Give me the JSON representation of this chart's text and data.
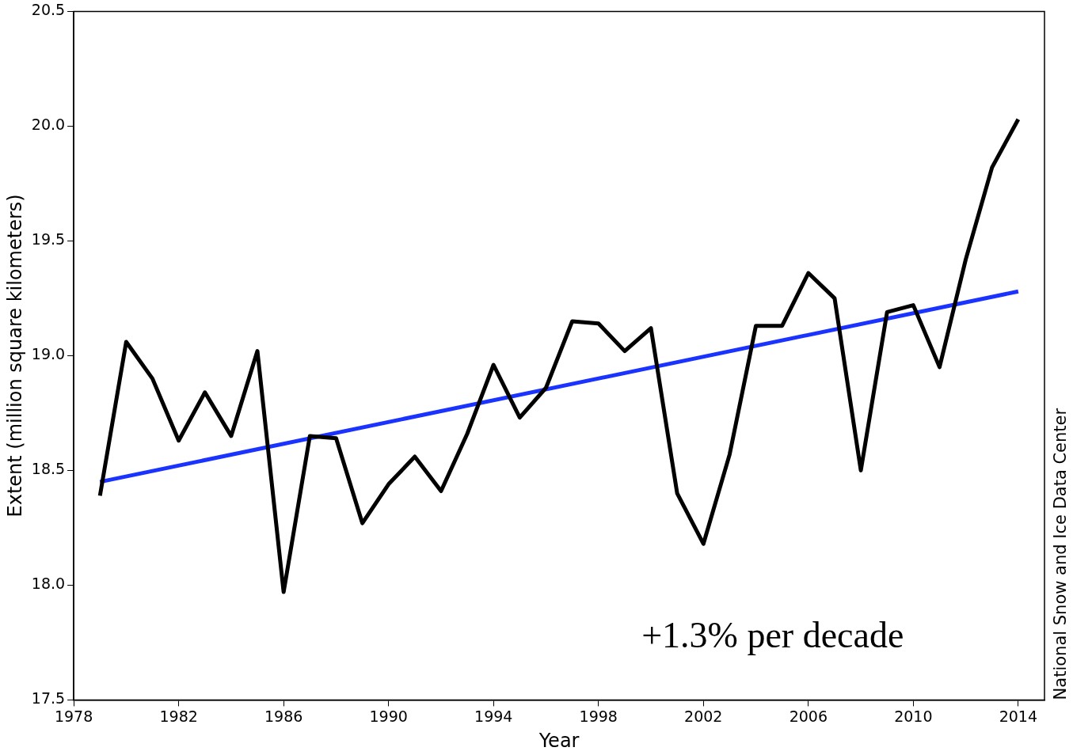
{
  "chart_data": {
    "type": "line",
    "xlabel": "Year",
    "ylabel": "Extent (million square kilometers)",
    "x": [
      1979,
      1980,
      1981,
      1982,
      1983,
      1984,
      1985,
      1986,
      1987,
      1988,
      1989,
      1990,
      1991,
      1992,
      1993,
      1994,
      1995,
      1996,
      1997,
      1998,
      1999,
      2000,
      2001,
      2002,
      2003,
      2004,
      2005,
      2006,
      2007,
      2008,
      2009,
      2010,
      2011,
      2012,
      2013,
      2014
    ],
    "series": [
      {
        "color": "#000000",
        "values": [
          18.39,
          19.06,
          18.9,
          18.63,
          18.84,
          18.65,
          19.02,
          17.97,
          18.65,
          18.64,
          18.27,
          18.44,
          18.56,
          18.41,
          18.66,
          18.96,
          18.73,
          18.86,
          19.15,
          19.14,
          19.02,
          19.12,
          18.4,
          18.18,
          18.57,
          19.13,
          19.13,
          19.36,
          19.25,
          18.5,
          19.19,
          19.22,
          18.95,
          19.42,
          19.82,
          20.03
        ]
      },
      {
        "type": "line",
        "color": "#1a33ff",
        "x": [
          1979,
          2014
        ],
        "values": [
          18.45,
          19.28
        ]
      }
    ],
    "xlim": [
      1978,
      2015
    ],
    "xticks": [
      1978,
      1982,
      1986,
      1990,
      1994,
      1998,
      2002,
      2006,
      2010,
      2014
    ],
    "ylim": [
      17.5,
      20.5
    ],
    "yticks": [
      {
        "value": 17.5,
        "label": "17.5"
      },
      {
        "value": 18,
        "label": "18.0"
      },
      {
        "value": 18.5,
        "label": "18.5"
      },
      {
        "value": 19,
        "label": "19.0"
      },
      {
        "value": 19.5,
        "label": "19.5"
      },
      {
        "value": 20,
        "label": "20.0"
      },
      {
        "value": 20.5,
        "label": "20.5"
      }
    ],
    "grid": false,
    "legend": false,
    "marker": "none",
    "line_style": "solid",
    "annotations": [
      "+1.3% per decade",
      "National Snow and Ice Data Center"
    ]
  }
}
